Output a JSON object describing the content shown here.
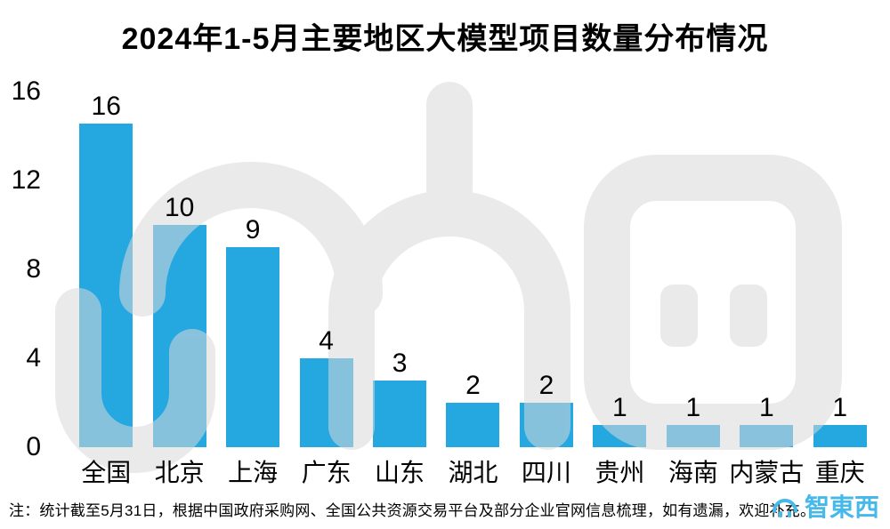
{
  "chart_data": {
    "type": "bar",
    "title": "2024年1-5月主要地区大模型项目数量分布情况",
    "categories": [
      "全国",
      "北京",
      "上海",
      "广东",
      "山东",
      "湖北",
      "四川",
      "贵州",
      "海南",
      "内蒙古",
      "重庆"
    ],
    "values": [
      16,
      10,
      9,
      4,
      3,
      2,
      2,
      1,
      1,
      1,
      1
    ],
    "xlabel": "",
    "ylabel": "",
    "ylim": [
      0,
      16
    ],
    "yticks": [
      0,
      4,
      8,
      12,
      16
    ],
    "bar_color": "#25a7e0",
    "grid": false,
    "legend": false,
    "value_labels": true
  },
  "footnote": "注：统计截至5月31日，根据中国政府采购网、全国公共资源交易平台及部分企业官网信息梳理，如有遗漏，欢迎补充。",
  "brand": {
    "text": "智東西",
    "color": "#45b9ea"
  }
}
